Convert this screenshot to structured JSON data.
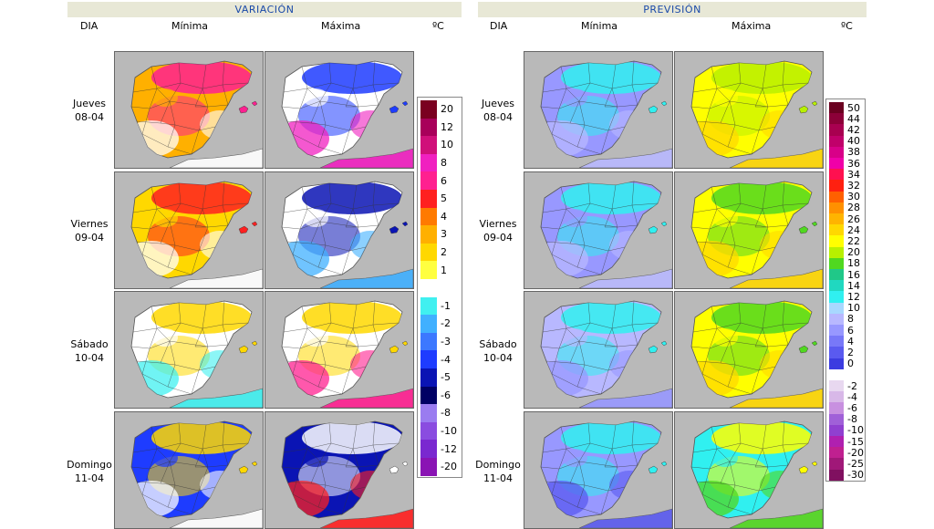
{
  "variacion": {
    "title": "VARIACIÓN",
    "headers": {
      "dia": "DIA",
      "min": "Mínima",
      "max": "Máxima",
      "unit": "ºC"
    },
    "legend": [
      {
        "label": "20",
        "color": "#7a0020"
      },
      {
        "label": "12",
        "color": "#a8005a"
      },
      {
        "label": "10",
        "color": "#d0107a"
      },
      {
        "label": "8",
        "color": "#f020c0"
      },
      {
        "label": "6",
        "color": "#ff2090"
      },
      {
        "label": "5",
        "color": "#ff2020"
      },
      {
        "label": "4",
        "color": "#ff7a00"
      },
      {
        "label": "3",
        "color": "#ffb000"
      },
      {
        "label": "2",
        "color": "#ffd800"
      },
      {
        "label": "1",
        "color": "#ffff40"
      },
      {
        "label": "",
        "color": "#ffffff"
      },
      {
        "label": "-1",
        "color": "#40f0f0"
      },
      {
        "label": "-2",
        "color": "#40b0ff"
      },
      {
        "label": "-3",
        "color": "#3c78ff"
      },
      {
        "label": "-4",
        "color": "#1e3cff"
      },
      {
        "label": "-5",
        "color": "#0a14b4"
      },
      {
        "label": "-6",
        "color": "#000064"
      },
      {
        "label": "-8",
        "color": "#9a7cf0"
      },
      {
        "label": "-10",
        "color": "#8a4ce0"
      },
      {
        "label": "-12",
        "color": "#7a28d0"
      },
      {
        "label": "-20",
        "color": "#8a14b4"
      }
    ]
  },
  "prevision": {
    "title": "PREVISIÓN",
    "headers": {
      "dia": "DIA",
      "min": "Mínima",
      "max": "Máxima",
      "unit": "ºC"
    },
    "legend": [
      {
        "label": "50",
        "color": "#6a0020"
      },
      {
        "label": "44",
        "color": "#8c0038"
      },
      {
        "label": "42",
        "color": "#a80050"
      },
      {
        "label": "40",
        "color": "#c0006a"
      },
      {
        "label": "38",
        "color": "#d80088"
      },
      {
        "label": "36",
        "color": "#f000a8"
      },
      {
        "label": "34",
        "color": "#ff1050"
      },
      {
        "label": "32",
        "color": "#ff2010"
      },
      {
        "label": "30",
        "color": "#ff6000"
      },
      {
        "label": "28",
        "color": "#ff9000"
      },
      {
        "label": "26",
        "color": "#ffb400"
      },
      {
        "label": "24",
        "color": "#ffd800"
      },
      {
        "label": "22",
        "color": "#ffff00"
      },
      {
        "label": "20",
        "color": "#b8f000"
      },
      {
        "label": "18",
        "color": "#50d820"
      },
      {
        "label": "16",
        "color": "#20c888"
      },
      {
        "label": "14",
        "color": "#20d8c0"
      },
      {
        "label": "12",
        "color": "#30f0f0"
      },
      {
        "label": "10",
        "color": "#a8d8ff"
      },
      {
        "label": "8",
        "color": "#b8b8ff"
      },
      {
        "label": "6",
        "color": "#9898ff"
      },
      {
        "label": "4",
        "color": "#7878f8"
      },
      {
        "label": "2",
        "color": "#5a5af0"
      },
      {
        "label": "0",
        "color": "#3c3ce0"
      },
      {
        "label": "",
        "color": "#ffffff"
      },
      {
        "label": "-2",
        "color": "#e8d8f0"
      },
      {
        "label": "-4",
        "color": "#d8b8e8"
      },
      {
        "label": "-6",
        "color": "#c890e0"
      },
      {
        "label": "-8",
        "color": "#a060d8"
      },
      {
        "label": "-10",
        "color": "#9040d0"
      },
      {
        "label": "-15",
        "color": "#b020b0"
      },
      {
        "label": "-20",
        "color": "#c02090"
      },
      {
        "label": "-25",
        "color": "#a01878"
      },
      {
        "label": "-30",
        "color": "#801060"
      }
    ]
  },
  "days": [
    {
      "name": "Jueves",
      "date": "08-04",
      "var_min": [
        "#ffb000",
        "#ff2090",
        "#ffffff"
      ],
      "var_max": [
        "#ffffff",
        "#1e3cff",
        "#f020c0"
      ],
      "prev_min": [
        "#9898ff",
        "#30f0f0",
        "#b8b8ff"
      ],
      "prev_max": [
        "#ffff00",
        "#b8f000",
        "#ffd800"
      ]
    },
    {
      "name": "Viernes",
      "date": "09-04",
      "var_min": [
        "#ffd800",
        "#ff2020",
        "#ffffff"
      ],
      "var_max": [
        "#ffffff",
        "#0a14b4",
        "#40b0ff"
      ],
      "prev_min": [
        "#9898ff",
        "#30f0f0",
        "#b8b8ff"
      ],
      "prev_max": [
        "#ffff00",
        "#50d820",
        "#ffd800"
      ]
    },
    {
      "name": "Sábado",
      "date": "10-04",
      "var_min": [
        "#ffffff",
        "#ffd800",
        "#40f0f0"
      ],
      "var_max": [
        "#ffffff",
        "#ffd800",
        "#ff2090"
      ],
      "prev_min": [
        "#b8b8ff",
        "#30f0f0",
        "#9898ff"
      ],
      "prev_max": [
        "#ffff00",
        "#50d820",
        "#ffd800"
      ]
    },
    {
      "name": "Domingo",
      "date": "11-04",
      "var_min": [
        "#1e3cff",
        "#ffd800",
        "#ffffff"
      ],
      "var_max": [
        "#0a14b4",
        "#ffffff",
        "#ff2020"
      ],
      "prev_min": [
        "#9898ff",
        "#30f0f0",
        "#5a5af0"
      ],
      "prev_max": [
        "#30f0f0",
        "#ffff00",
        "#50d820"
      ]
    }
  ]
}
